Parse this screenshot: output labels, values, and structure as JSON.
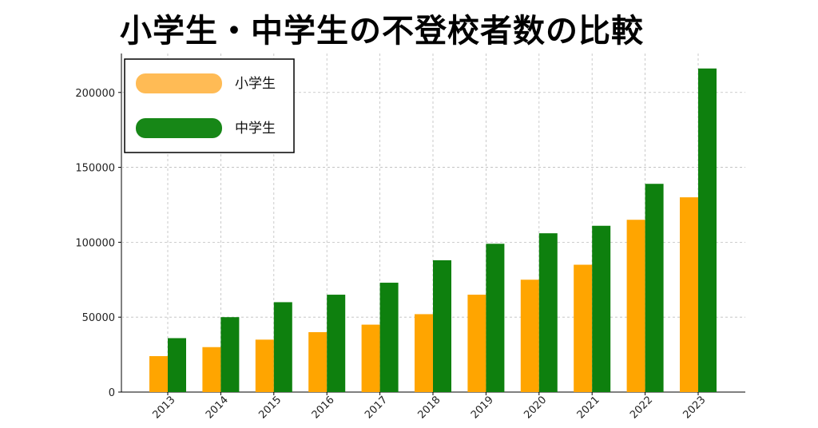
{
  "title": "小学生・中学生の不登校者数の比較",
  "chart_data": {
    "type": "bar",
    "categories": [
      "2013",
      "2014",
      "2015",
      "2016",
      "2017",
      "2018",
      "2019",
      "2020",
      "2021",
      "2022",
      "2023"
    ],
    "series": [
      {
        "name": "小学生",
        "color": "#FFA500",
        "legend_color": "#FFBB55",
        "values": [
          24000,
          30000,
          35000,
          40000,
          45000,
          52000,
          65000,
          75000,
          85000,
          115000,
          130000
        ]
      },
      {
        "name": "中学生",
        "color": "#0E800E",
        "legend_color": "#178717",
        "values": [
          36000,
          50000,
          60000,
          65000,
          73000,
          88000,
          99000,
          106000,
          111000,
          139000,
          216000
        ]
      }
    ],
    "ylim": [
      0,
      226000
    ],
    "yticks": [
      0,
      50000,
      100000,
      150000,
      200000
    ],
    "ytick_labels": [
      "0",
      "50000",
      "100000",
      "150000",
      "200000"
    ],
    "grid": true,
    "legend_placement": "top-left",
    "xlabel": "",
    "ylabel": ""
  }
}
